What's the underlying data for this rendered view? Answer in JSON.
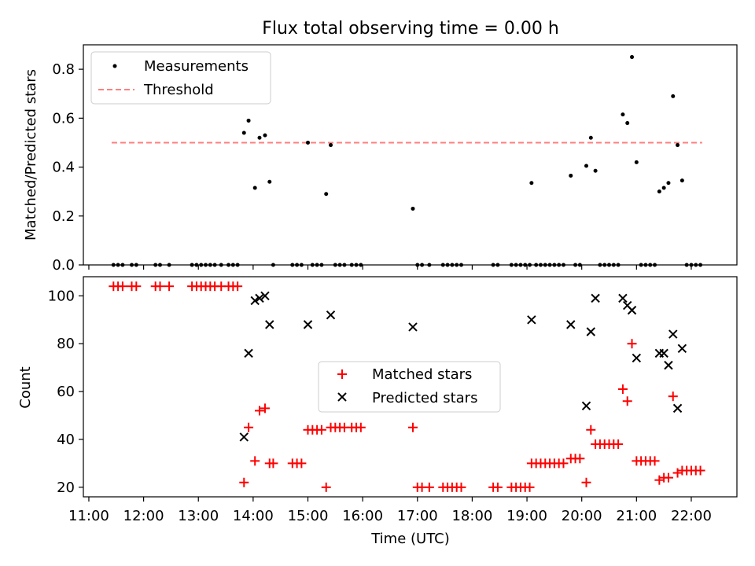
{
  "chart_data": [
    {
      "type": "scatter",
      "title": "Flux total observing time = 0.00 h",
      "ylabel": "Matched/Predicted stars",
      "xlabel": "",
      "xlim": [
        "10:54",
        "22:50"
      ],
      "ylim": [
        0,
        0.9
      ],
      "yticks": [
        "0.0",
        "0.2",
        "0.4",
        "0.6",
        "0.8"
      ],
      "grid": false,
      "legend_position": "upper-left",
      "threshold": {
        "name": "Threshold",
        "y": 0.5,
        "x_range": [
          "11:25",
          "22:12"
        ],
        "color": "#ff7f7f",
        "style": "dashed"
      },
      "series": [
        {
          "name": "Measurements",
          "color": "#000000",
          "marker": "point",
          "points": [
            [
              "11:27",
              0
            ],
            [
              "11:32",
              0
            ],
            [
              "11:37",
              0
            ],
            [
              "11:47",
              0
            ],
            [
              "11:52",
              0
            ],
            [
              "12:13",
              0
            ],
            [
              "12:18",
              0
            ],
            [
              "12:28",
              0
            ],
            [
              "12:53",
              0
            ],
            [
              "12:58",
              0
            ],
            [
              "13:03",
              0
            ],
            [
              "13:08",
              0
            ],
            [
              "13:13",
              0
            ],
            [
              "13:18",
              0
            ],
            [
              "13:25",
              0
            ],
            [
              "13:33",
              0
            ],
            [
              "13:38",
              0
            ],
            [
              "13:43",
              0
            ],
            [
              "13:50",
              0.54
            ],
            [
              "13:55",
              0.59
            ],
            [
              "14:02",
              0.315
            ],
            [
              "14:07",
              0.52
            ],
            [
              "14:13",
              0.53
            ],
            [
              "14:18",
              0.34
            ],
            [
              "14:22",
              0
            ],
            [
              "14:43",
              0
            ],
            [
              "14:48",
              0
            ],
            [
              "14:53",
              0
            ],
            [
              "15:00",
              0.5
            ],
            [
              "15:05",
              0
            ],
            [
              "15:10",
              0
            ],
            [
              "15:15",
              0
            ],
            [
              "15:20",
              0.29
            ],
            [
              "15:25",
              0.49
            ],
            [
              "15:30",
              0
            ],
            [
              "15:35",
              0
            ],
            [
              "15:40",
              0
            ],
            [
              "15:48",
              0
            ],
            [
              "15:53",
              0
            ],
            [
              "15:58",
              0
            ],
            [
              "16:55",
              0.23
            ],
            [
              "17:00",
              0
            ],
            [
              "17:05",
              0
            ],
            [
              "17:13",
              0
            ],
            [
              "17:28",
              0
            ],
            [
              "17:33",
              0
            ],
            [
              "17:38",
              0
            ],
            [
              "17:43",
              0
            ],
            [
              "17:48",
              0
            ],
            [
              "18:23",
              0
            ],
            [
              "18:28",
              0
            ],
            [
              "18:43",
              0
            ],
            [
              "18:48",
              0
            ],
            [
              "18:53",
              0
            ],
            [
              "18:58",
              0
            ],
            [
              "19:03",
              0
            ],
            [
              "19:05",
              0.335
            ],
            [
              "19:10",
              0
            ],
            [
              "19:15",
              0
            ],
            [
              "19:20",
              0
            ],
            [
              "19:25",
              0
            ],
            [
              "19:30",
              0
            ],
            [
              "19:35",
              0
            ],
            [
              "19:40",
              0
            ],
            [
              "19:48",
              0.365
            ],
            [
              "19:53",
              0
            ],
            [
              "19:58",
              0
            ],
            [
              "20:05",
              0.405
            ],
            [
              "20:10",
              0.52
            ],
            [
              "20:15",
              0.385
            ],
            [
              "20:20",
              0
            ],
            [
              "20:25",
              0
            ],
            [
              "20:30",
              0
            ],
            [
              "20:35",
              0
            ],
            [
              "20:40",
              0
            ],
            [
              "20:45",
              0.615
            ],
            [
              "20:50",
              0.58
            ],
            [
              "20:55",
              0.85
            ],
            [
              "21:00",
              0.42
            ],
            [
              "21:05",
              0
            ],
            [
              "21:10",
              0
            ],
            [
              "21:15",
              0
            ],
            [
              "21:20",
              0
            ],
            [
              "21:25",
              0.3
            ],
            [
              "21:30",
              0.315
            ],
            [
              "21:35",
              0.335
            ],
            [
              "21:40",
              0.69
            ],
            [
              "21:45",
              0.49
            ],
            [
              "21:50",
              0.345
            ],
            [
              "21:55",
              0
            ],
            [
              "22:00",
              0
            ],
            [
              "22:05",
              0
            ],
            [
              "22:10",
              0
            ]
          ]
        }
      ]
    },
    {
      "type": "scatter",
      "title": "",
      "ylabel": "Count",
      "xlabel": "Time (UTC)",
      "xlim": [
        "10:54",
        "22:50"
      ],
      "ylim": [
        16,
        108
      ],
      "yticks": [
        "20",
        "40",
        "60",
        "80",
        "100"
      ],
      "xticks": [
        "11:00",
        "12:00",
        "13:00",
        "14:00",
        "15:00",
        "16:00",
        "17:00",
        "18:00",
        "19:00",
        "20:00",
        "21:00",
        "22:00"
      ],
      "grid": false,
      "legend_position": "center",
      "series": [
        {
          "name": "Matched stars",
          "color": "#ff0000",
          "marker": "plus",
          "points": [
            [
              "11:27",
              104
            ],
            [
              "11:32",
              104
            ],
            [
              "11:37",
              104
            ],
            [
              "11:47",
              104
            ],
            [
              "11:52",
              104
            ],
            [
              "12:13",
              104
            ],
            [
              "12:18",
              104
            ],
            [
              "12:28",
              104
            ],
            [
              "12:53",
              104
            ],
            [
              "12:58",
              104
            ],
            [
              "13:03",
              104
            ],
            [
              "13:08",
              104
            ],
            [
              "13:13",
              104
            ],
            [
              "13:18",
              104
            ],
            [
              "13:25",
              104
            ],
            [
              "13:33",
              104
            ],
            [
              "13:38",
              104
            ],
            [
              "13:43",
              104
            ],
            [
              "13:50",
              22
            ],
            [
              "13:55",
              45
            ],
            [
              "14:02",
              31
            ],
            [
              "14:07",
              52
            ],
            [
              "14:13",
              53
            ],
            [
              "14:18",
              30
            ],
            [
              "14:22",
              30
            ],
            [
              "14:43",
              30
            ],
            [
              "14:48",
              30
            ],
            [
              "14:53",
              30
            ],
            [
              "15:00",
              44
            ],
            [
              "15:05",
              44
            ],
            [
              "15:10",
              44
            ],
            [
              "15:15",
              44
            ],
            [
              "15:20",
              20
            ],
            [
              "15:25",
              45
            ],
            [
              "15:30",
              45
            ],
            [
              "15:35",
              45
            ],
            [
              "15:40",
              45
            ],
            [
              "15:48",
              45
            ],
            [
              "15:53",
              45
            ],
            [
              "15:58",
              45
            ],
            [
              "16:55",
              45
            ],
            [
              "17:00",
              20
            ],
            [
              "17:05",
              20
            ],
            [
              "17:13",
              20
            ],
            [
              "17:28",
              20
            ],
            [
              "17:33",
              20
            ],
            [
              "17:38",
              20
            ],
            [
              "17:43",
              20
            ],
            [
              "17:48",
              20
            ],
            [
              "18:23",
              20
            ],
            [
              "18:28",
              20
            ],
            [
              "18:43",
              20
            ],
            [
              "18:48",
              20
            ],
            [
              "18:53",
              20
            ],
            [
              "18:58",
              20
            ],
            [
              "19:03",
              20
            ],
            [
              "19:05",
              30
            ],
            [
              "19:10",
              30
            ],
            [
              "19:15",
              30
            ],
            [
              "19:20",
              30
            ],
            [
              "19:25",
              30
            ],
            [
              "19:30",
              30
            ],
            [
              "19:35",
              30
            ],
            [
              "19:40",
              30
            ],
            [
              "19:48",
              32
            ],
            [
              "19:53",
              32
            ],
            [
              "19:58",
              32
            ],
            [
              "20:05",
              22
            ],
            [
              "20:10",
              44
            ],
            [
              "20:15",
              38
            ],
            [
              "20:20",
              38
            ],
            [
              "20:25",
              38
            ],
            [
              "20:30",
              38
            ],
            [
              "20:35",
              38
            ],
            [
              "20:40",
              38
            ],
            [
              "20:45",
              61
            ],
            [
              "20:50",
              56
            ],
            [
              "20:55",
              80
            ],
            [
              "21:00",
              31
            ],
            [
              "21:05",
              31
            ],
            [
              "21:10",
              31
            ],
            [
              "21:15",
              31
            ],
            [
              "21:20",
              31
            ],
            [
              "21:25",
              23
            ],
            [
              "21:30",
              24
            ],
            [
              "21:35",
              24
            ],
            [
              "21:40",
              58
            ],
            [
              "21:45",
              26
            ],
            [
              "21:50",
              27
            ],
            [
              "21:55",
              27
            ],
            [
              "22:00",
              27
            ],
            [
              "22:05",
              27
            ],
            [
              "22:10",
              27
            ]
          ]
        },
        {
          "name": "Predicted stars",
          "color": "#000000",
          "marker": "x",
          "points": [
            [
              "13:50",
              41
            ],
            [
              "13:55",
              76
            ],
            [
              "14:02",
              98
            ],
            [
              "14:07",
              99
            ],
            [
              "14:13",
              100
            ],
            [
              "14:18",
              88
            ],
            [
              "15:00",
              88
            ],
            [
              "15:25",
              92
            ],
            [
              "16:55",
              87
            ],
            [
              "19:05",
              90
            ],
            [
              "19:48",
              88
            ],
            [
              "20:05",
              54
            ],
            [
              "20:10",
              85
            ],
            [
              "20:15",
              99
            ],
            [
              "20:45",
              99
            ],
            [
              "20:50",
              96
            ],
            [
              "20:55",
              94
            ],
            [
              "21:00",
              74
            ],
            [
              "21:25",
              76
            ],
            [
              "21:30",
              76
            ],
            [
              "21:35",
              71
            ],
            [
              "21:40",
              84
            ],
            [
              "21:45",
              53
            ],
            [
              "21:50",
              78
            ]
          ]
        }
      ]
    }
  ]
}
